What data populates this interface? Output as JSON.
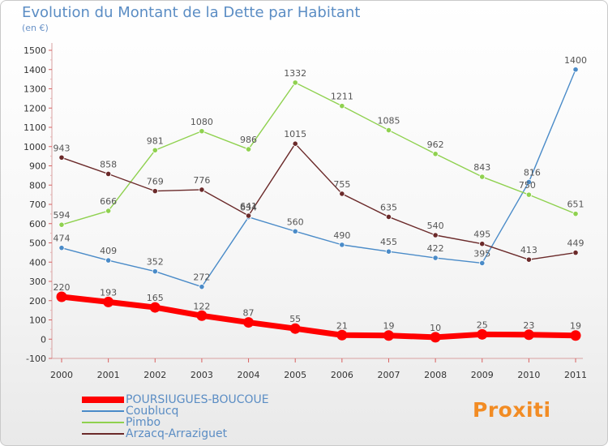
{
  "chart_data": {
    "type": "line",
    "title": "Evolution du Montant de la Dette par Habitant",
    "subtitle": "(en €)",
    "categories": [
      "2000",
      "2001",
      "2002",
      "2003",
      "2004",
      "2005",
      "2006",
      "2007",
      "2008",
      "2009",
      "2010",
      "2011"
    ],
    "ylim": [
      -100,
      1500
    ],
    "yticks": [
      -100,
      0,
      100,
      200,
      300,
      400,
      500,
      600,
      700,
      800,
      900,
      1000,
      1100,
      1200,
      1300,
      1400,
      1500
    ],
    "grid": false,
    "legend_position": "bottom-left",
    "series": [
      {
        "name": "Coublucq",
        "color": "#4a8bc8",
        "values": [
          474,
          409,
          352,
          272,
          634,
          560,
          490,
          455,
          422,
          395,
          816,
          1400
        ]
      },
      {
        "name": "Pimbo",
        "color": "#8fd14f",
        "values": [
          594,
          666,
          981,
          1080,
          986,
          1332,
          1211,
          1085,
          962,
          843,
          750,
          651
        ]
      },
      {
        "name": "Arzacq-Arraziguet",
        "color": "#6b2a2a",
        "values": [
          943,
          858,
          769,
          776,
          641,
          1015,
          755,
          635,
          540,
          495,
          413,
          449
        ]
      },
      {
        "name": "POURSIUGUES-BOUCOUE",
        "color": "#ff0000",
        "values": [
          220,
          193,
          165,
          122,
          87,
          55,
          21,
          19,
          10,
          25,
          23,
          19
        ]
      }
    ],
    "legend": [
      {
        "name": "POURSIUGUES-BOUCOUE",
        "color": "#ff0000"
      },
      {
        "name": "Coublucq",
        "color": "#4a8bc8"
      },
      {
        "name": "Pimbo",
        "color": "#8fd14f"
      },
      {
        "name": "Arzacq-Arraziguet",
        "color": "#6b2a2a"
      }
    ]
  },
  "branding": {
    "logo_text": "Proxiti"
  }
}
